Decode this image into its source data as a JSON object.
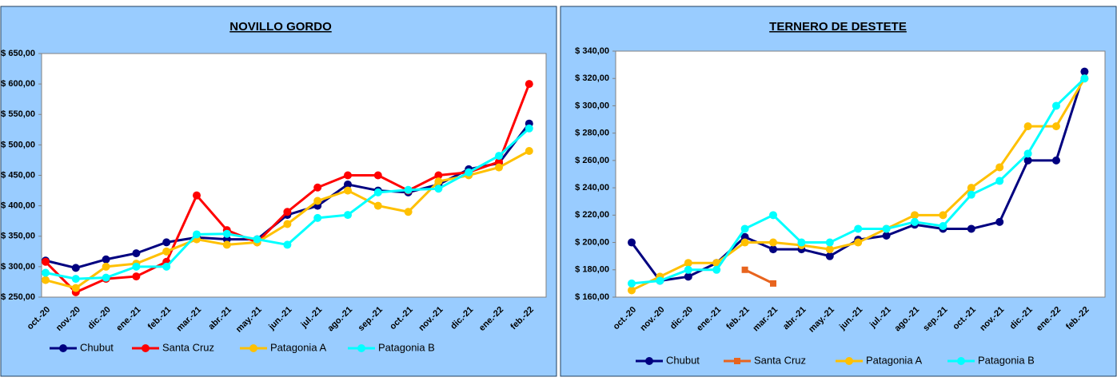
{
  "chart_data": [
    {
      "type": "line",
      "title": "NOVILLO GORDO",
      "categories": [
        "oct.-20",
        "nov.-20",
        "dic.-20",
        "ene.-21",
        "feb.-21",
        "mar.-21",
        "abr.-21",
        "may.-21",
        "jun.-21",
        "jul.-21",
        "ago.-21",
        "sep.-21",
        "oct.-21",
        "nov.-21",
        "dic.-21",
        "ene.-22",
        "feb.-22"
      ],
      "ylim": [
        250,
        650
      ],
      "yticks": [
        {
          "value": 250,
          "label": "$ 250,00"
        },
        {
          "value": 300,
          "label": "$ 300,00"
        },
        {
          "value": 350,
          "label": "$ 350,00"
        },
        {
          "value": 400,
          "label": "$ 400,00"
        },
        {
          "value": 450,
          "label": "$ 450,00"
        },
        {
          "value": 500,
          "label": "$ 500,00"
        },
        {
          "value": 550,
          "label": "$ 550,00"
        },
        {
          "value": 600,
          "label": "$ 600,00"
        },
        {
          "value": 650,
          "label": "$ 650,00"
        }
      ],
      "grid": false,
      "legend": "bottom",
      "series": [
        {
          "name": "Chubut",
          "color": "#000080",
          "marker": "circle",
          "values": [
            310,
            298,
            312,
            322,
            340,
            348,
            345,
            345,
            385,
            400,
            435,
            425,
            422,
            435,
            460,
            470,
            535
          ]
        },
        {
          "name": "Santa Cruz",
          "color": "#ff0000",
          "marker": "circle",
          "values": [
            308,
            258,
            280,
            284,
            308,
            417,
            360,
            340,
            390,
            430,
            450,
            450,
            425,
            450,
            455,
            472,
            600
          ]
        },
        {
          "name": "Patagonia A",
          "color": "#ffc000",
          "marker": "circle",
          "values": [
            278,
            265,
            300,
            305,
            325,
            345,
            336,
            340,
            370,
            408,
            425,
            400,
            390,
            440,
            450,
            463,
            490
          ]
        },
        {
          "name": "Patagonia B",
          "color": "#00ffff",
          "marker": "circle",
          "values": [
            290,
            280,
            282,
            300,
            300,
            353,
            354,
            345,
            336,
            380,
            385,
            422,
            426,
            428,
            455,
            482,
            527
          ]
        }
      ]
    },
    {
      "type": "line",
      "title": "TERNERO DE DESTETE",
      "categories": [
        "oct.-20",
        "nov.-20",
        "dic.-20",
        "ene.-21",
        "feb.-21",
        "mar.-21",
        "abr.-21",
        "may.-21",
        "jun.-21",
        "jul.-21",
        "ago.-21",
        "sep.-21",
        "oct.-21",
        "nov.-21",
        "dic.-21",
        "ene.-22",
        "feb.-22"
      ],
      "ylim": [
        160,
        340
      ],
      "yticks": [
        {
          "value": 160,
          "label": "$ 160,00"
        },
        {
          "value": 180,
          "label": "$ 180,00"
        },
        {
          "value": 200,
          "label": "$ 200,00"
        },
        {
          "value": 220,
          "label": "$ 220,00"
        },
        {
          "value": 240,
          "label": "$ 240,00"
        },
        {
          "value": 260,
          "label": "$ 260,00"
        },
        {
          "value": 280,
          "label": "$ 280,00"
        },
        {
          "value": 300,
          "label": "$ 300,00"
        },
        {
          "value": 320,
          "label": "$ 320,00"
        },
        {
          "value": 340,
          "label": "$ 340,00"
        }
      ],
      "grid": false,
      "legend": "bottom",
      "series": [
        {
          "name": "Chubut",
          "color": "#000080",
          "marker": "circle",
          "values": [
            200,
            172,
            175,
            185,
            204,
            195,
            195,
            190,
            202,
            205,
            213,
            210,
            210,
            215,
            260,
            260,
            325
          ]
        },
        {
          "name": "Santa Cruz",
          "color": "#e8641e",
          "marker": "square",
          "values": [
            null,
            null,
            null,
            null,
            180,
            170,
            null,
            null,
            null,
            null,
            null,
            null,
            null,
            null,
            null,
            null,
            null
          ]
        },
        {
          "name": "Patagonia A",
          "color": "#ffc000",
          "marker": "circle",
          "values": [
            165,
            175,
            185,
            185,
            200,
            200,
            198,
            195,
            200,
            210,
            220,
            220,
            240,
            255,
            285,
            285,
            320
          ]
        },
        {
          "name": "Patagonia B",
          "color": "#00ffff",
          "marker": "circle",
          "values": [
            170,
            172,
            180,
            180,
            210,
            220,
            200,
            200,
            210,
            210,
            215,
            212,
            235,
            245,
            265,
            300,
            320
          ]
        }
      ]
    }
  ]
}
